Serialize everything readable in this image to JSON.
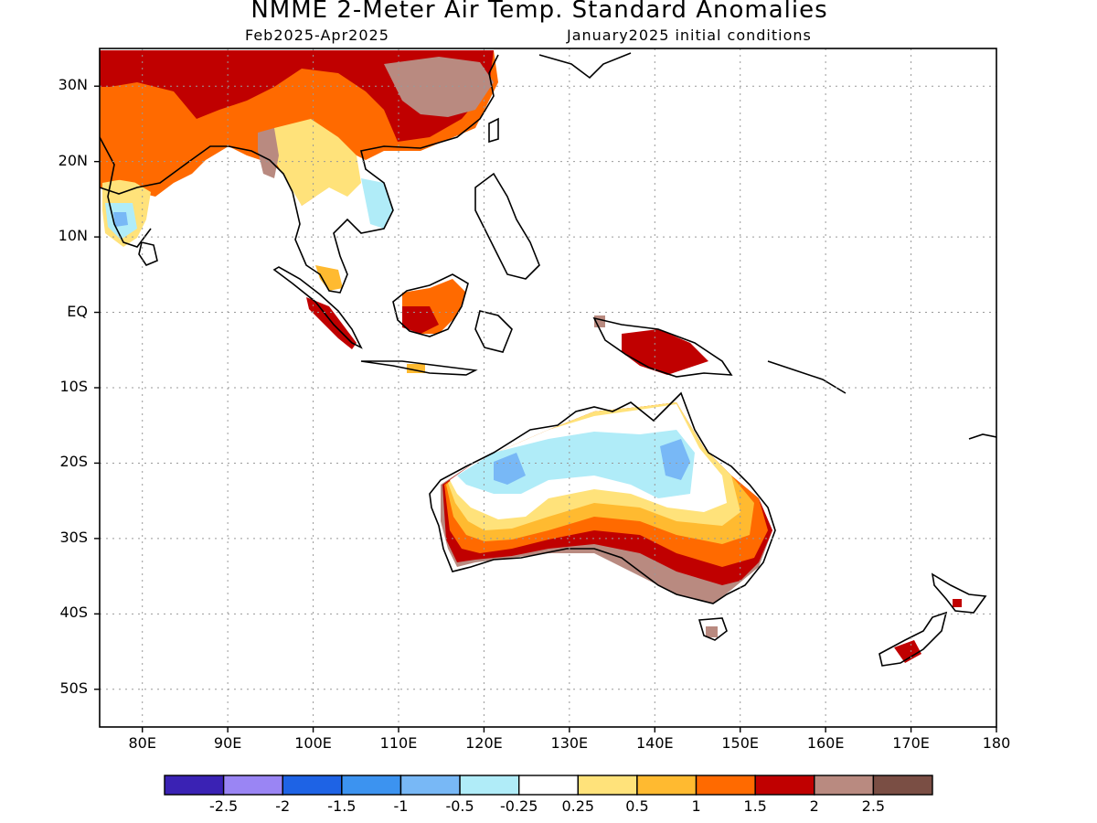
{
  "title": "NMME 2-Meter Air Temp. Standard Anomalies",
  "subtitle_left": "Feb2025-Apr2025",
  "subtitle_right": "January2025 initial conditions",
  "map": {
    "lon_range": [
      75,
      180
    ],
    "lat_range": [
      -55,
      35
    ],
    "lon_ticks": [
      {
        "lon": 80,
        "label": "80E"
      },
      {
        "lon": 90,
        "label": "90E"
      },
      {
        "lon": 100,
        "label": "100E"
      },
      {
        "lon": 110,
        "label": "110E"
      },
      {
        "lon": 120,
        "label": "120E"
      },
      {
        "lon": 130,
        "label": "130E"
      },
      {
        "lon": 140,
        "label": "140E"
      },
      {
        "lon": 150,
        "label": "150E"
      },
      {
        "lon": 160,
        "label": "160E"
      },
      {
        "lon": 170,
        "label": "170E"
      },
      {
        "lon": 180,
        "label": "180"
      }
    ],
    "lat_ticks": [
      {
        "lat": 30,
        "label": "30N"
      },
      {
        "lat": 20,
        "label": "20N"
      },
      {
        "lat": 10,
        "label": "10N"
      },
      {
        "lat": 0,
        "label": "EQ"
      },
      {
        "lat": -10,
        "label": "10S"
      },
      {
        "lat": -20,
        "label": "20S"
      },
      {
        "lat": -30,
        "label": "30S"
      },
      {
        "lat": -40,
        "label": "40S"
      },
      {
        "lat": -50,
        "label": "50S"
      }
    ]
  },
  "colorbar": {
    "colors": [
      "#3a22b4",
      "#9a85f4",
      "#1e63e5",
      "#3c93f0",
      "#78b8f6",
      "#b0ecf8",
      "#ffffff",
      "#ffe27a",
      "#ffba30",
      "#ff6a00",
      "#c00000",
      "#b98a80",
      "#7a4e44"
    ],
    "labels": [
      "-2.5",
      "-2",
      "-1.5",
      "-1",
      "-0.5",
      "-0.25",
      "0.25",
      "0.5",
      "1",
      "1.5",
      "2",
      "2.5"
    ]
  }
}
